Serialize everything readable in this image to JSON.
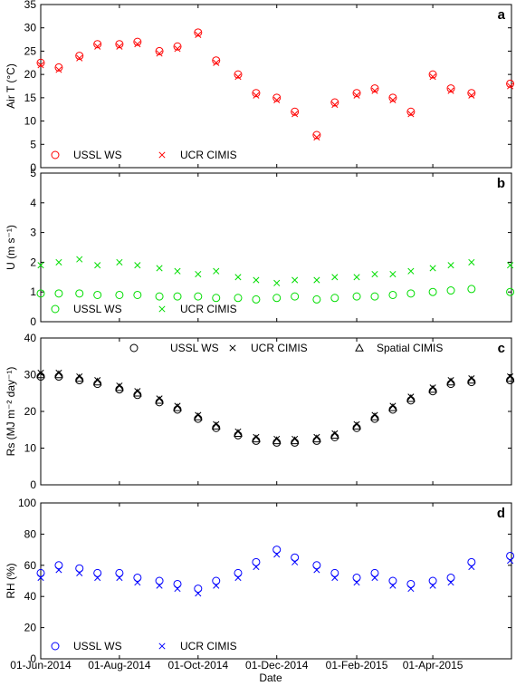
{
  "xlabel": "Date",
  "x_ticks": [
    "01-Jun-2014",
    "01-Aug-2014",
    "01-Oct-2014",
    "01-Dec-2014",
    "01-Feb-2015",
    "01-Apr-2015"
  ],
  "colors": {
    "a": "#ff0000",
    "b": "#00dd00",
    "c": "#000000",
    "d": "#0000ff"
  },
  "chart_data": [
    {
      "panel": "a",
      "type": "scatter",
      "ylabel": "Air T (°C)",
      "ylim": [
        0,
        35
      ],
      "yticks": [
        0,
        5,
        10,
        15,
        20,
        25,
        30,
        35
      ],
      "legend_position": "bottom-left",
      "legend": [
        "USSL WS",
        "UCR CIMIS"
      ],
      "x": [
        "2014-06-01",
        "2014-06-15",
        "2014-07-01",
        "2014-07-15",
        "2014-08-01",
        "2014-08-15",
        "2014-09-01",
        "2014-09-15",
        "2014-10-01",
        "2014-10-15",
        "2014-11-01",
        "2014-11-15",
        "2014-12-01",
        "2014-12-15",
        "2015-01-01",
        "2015-01-15",
        "2015-02-01",
        "2015-02-15",
        "2015-03-01",
        "2015-03-15",
        "2015-04-01",
        "2015-04-15",
        "2015-05-01",
        "2015-05-31"
      ],
      "series": [
        {
          "name": "USSL WS",
          "marker": "circle",
          "values": [
            22.5,
            21.5,
            24,
            26.5,
            26.5,
            27,
            25,
            26,
            29,
            23,
            20,
            16,
            15,
            12,
            7,
            14,
            16,
            17,
            15,
            12,
            20,
            17,
            16,
            18
          ]
        },
        {
          "name": "UCR CIMIS",
          "marker": "x",
          "values": [
            22,
            21,
            23.5,
            26,
            26,
            26.5,
            24.5,
            25.5,
            28.5,
            22.5,
            19.5,
            15.5,
            14.5,
            11.5,
            6.5,
            13.5,
            15.5,
            16.5,
            14.5,
            11.5,
            19.5,
            16.5,
            15.5,
            17.5
          ]
        }
      ]
    },
    {
      "panel": "b",
      "type": "scatter",
      "ylabel": "U (m s⁻¹)",
      "ylim": [
        0,
        5
      ],
      "yticks": [
        0,
        1,
        2,
        3,
        4,
        5
      ],
      "legend_position": "bottom-left",
      "legend": [
        "USSL WS",
        "UCR CIMIS"
      ],
      "x": [
        "2014-06-01",
        "2014-06-15",
        "2014-07-01",
        "2014-07-15",
        "2014-08-01",
        "2014-08-15",
        "2014-09-01",
        "2014-09-15",
        "2014-10-01",
        "2014-10-15",
        "2014-11-01",
        "2014-11-15",
        "2014-12-01",
        "2014-12-15",
        "2015-01-01",
        "2015-01-15",
        "2015-02-01",
        "2015-02-15",
        "2015-03-01",
        "2015-03-15",
        "2015-04-01",
        "2015-04-15",
        "2015-05-01",
        "2015-05-31"
      ],
      "series": [
        {
          "name": "USSL WS",
          "marker": "circle",
          "values": [
            0.95,
            0.95,
            0.95,
            0.9,
            0.9,
            0.9,
            0.85,
            0.85,
            0.85,
            0.8,
            0.8,
            0.75,
            0.8,
            0.85,
            0.75,
            0.8,
            0.85,
            0.85,
            0.9,
            0.95,
            1.0,
            1.05,
            1.1,
            1.0
          ]
        },
        {
          "name": "UCR CIMIS",
          "marker": "x",
          "values": [
            1.9,
            2.0,
            2.1,
            1.9,
            2.0,
            1.9,
            1.8,
            1.7,
            1.6,
            1.7,
            1.5,
            1.4,
            1.3,
            1.4,
            1.4,
            1.5,
            1.5,
            1.6,
            1.6,
            1.7,
            1.8,
            1.9,
            2.0,
            1.9
          ]
        }
      ]
    },
    {
      "panel": "c",
      "type": "scatter",
      "ylabel": "Rs (MJ m⁻² day⁻¹)",
      "ylim": [
        0,
        40
      ],
      "yticks": [
        0,
        10,
        20,
        30,
        40
      ],
      "legend_position": "top",
      "legend": [
        "USSL WS",
        "UCR CIMIS",
        "Spatial CIMIS"
      ],
      "x": [
        "2014-06-01",
        "2014-06-15",
        "2014-07-01",
        "2014-07-15",
        "2014-08-01",
        "2014-08-15",
        "2014-09-01",
        "2014-09-15",
        "2014-10-01",
        "2014-10-15",
        "2014-11-01",
        "2014-11-15",
        "2014-12-01",
        "2014-12-15",
        "2015-01-01",
        "2015-01-15",
        "2015-02-01",
        "2015-02-15",
        "2015-03-01",
        "2015-03-15",
        "2015-04-01",
        "2015-04-15",
        "2015-05-01",
        "2015-05-31"
      ],
      "series": [
        {
          "name": "USSL WS",
          "marker": "circle",
          "values": [
            29.5,
            29.5,
            28.5,
            27.5,
            26,
            24.5,
            22.5,
            20.5,
            18,
            15.5,
            13.5,
            12,
            11.5,
            11.5,
            12,
            13,
            15.5,
            18,
            20.5,
            23,
            25.5,
            27.5,
            28,
            28.5
          ]
        },
        {
          "name": "UCR CIMIS",
          "marker": "x",
          "values": [
            30.5,
            30.5,
            29.5,
            28.5,
            27,
            25.5,
            23.5,
            21.5,
            19,
            16.5,
            14.5,
            13,
            12.5,
            12.5,
            13,
            14,
            16.5,
            19,
            21.5,
            24,
            26.5,
            28.5,
            29,
            29.5
          ]
        },
        {
          "name": "Spatial CIMIS",
          "marker": "triangle",
          "values": [
            30,
            30,
            29,
            28,
            26.5,
            25,
            23,
            21,
            18.5,
            16,
            14,
            12.5,
            12,
            12,
            12.5,
            13.5,
            16,
            18.5,
            21,
            23.5,
            26,
            28,
            28.5,
            29
          ]
        }
      ]
    },
    {
      "panel": "d",
      "type": "scatter",
      "ylabel": "RH (%)",
      "ylim": [
        0,
        100
      ],
      "yticks": [
        0,
        20,
        40,
        60,
        80,
        100
      ],
      "legend_position": "bottom-left",
      "legend": [
        "USSL WS",
        "UCR CIMIS"
      ],
      "x": [
        "2014-06-01",
        "2014-06-15",
        "2014-07-01",
        "2014-07-15",
        "2014-08-01",
        "2014-08-15",
        "2014-09-01",
        "2014-09-15",
        "2014-10-01",
        "2014-10-15",
        "2014-11-01",
        "2014-11-15",
        "2014-12-01",
        "2014-12-15",
        "2015-01-01",
        "2015-01-15",
        "2015-02-01",
        "2015-02-15",
        "2015-03-01",
        "2015-03-15",
        "2015-04-01",
        "2015-04-15",
        "2015-05-01",
        "2015-05-31"
      ],
      "series": [
        {
          "name": "USSL WS",
          "marker": "circle",
          "values": [
            55,
            60,
            58,
            55,
            55,
            52,
            50,
            48,
            45,
            50,
            55,
            62,
            70,
            65,
            60,
            55,
            52,
            55,
            50,
            48,
            50,
            52,
            62,
            66
          ]
        },
        {
          "name": "UCR CIMIS",
          "marker": "x",
          "values": [
            52,
            57,
            55,
            52,
            52,
            49,
            47,
            45,
            42,
            47,
            52,
            59,
            67,
            62,
            57,
            52,
            49,
            52,
            47,
            45,
            47,
            49,
            59,
            63
          ]
        }
      ]
    }
  ]
}
